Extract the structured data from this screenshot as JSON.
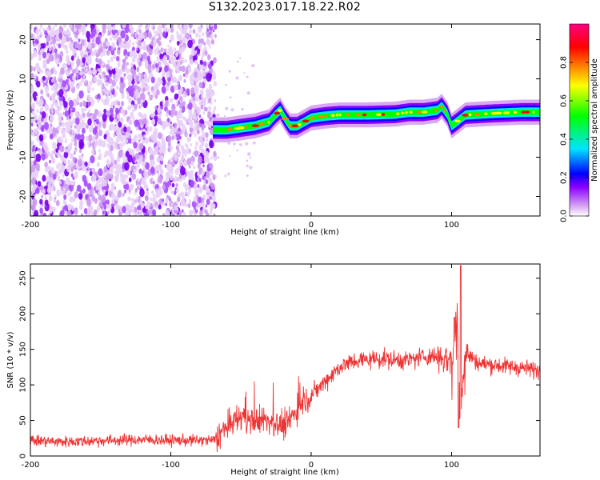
{
  "title": "S132.2023.017.18.22.R02",
  "chart_data": [
    {
      "type": "heatmap",
      "xlabel": "Height of straight line (km)",
      "ylabel": "Frequency (Hz)",
      "xlim": [
        -200,
        163
      ],
      "ylim": [
        -25,
        24
      ],
      "xticks": [
        -200,
        -100,
        0,
        100
      ],
      "yticks": [
        -20,
        -10,
        0,
        10,
        20
      ],
      "colorbar": {
        "label": "Normalized spectral amplitude",
        "range": [
          0,
          1
        ],
        "ticks": [
          0.0,
          0.2,
          0.4,
          0.6,
          0.8
        ],
        "tick_labels": [
          "0.0",
          "0.2",
          "0.4",
          "0.6",
          "0.8"
        ],
        "colors": [
          "#ffffff",
          "#d9a8f2",
          "#8b00ff",
          "#0000ff",
          "#00e5ff",
          "#00ff00",
          "#ffff00",
          "#ff8000",
          "#ff0000",
          "#ff007f"
        ]
      },
      "ridge": {
        "height_km": [
          -70,
          -60,
          -50,
          -40,
          -30,
          -25,
          -22,
          -18,
          -15,
          -10,
          -5,
          0,
          10,
          20,
          40,
          60,
          70,
          80,
          90,
          93,
          97,
          100,
          110,
          130,
          150,
          163
        ],
        "frequency_hz": [
          -3,
          -3,
          -2.5,
          -2,
          -1,
          1,
          2,
          -0.5,
          -2,
          -2,
          -1,
          0,
          0.5,
          0.8,
          0.8,
          1,
          1.5,
          1.5,
          2,
          3,
          1,
          -2,
          0.8,
          1.2,
          1.5,
          1.5
        ]
      },
      "noise_region_km": [
        -200,
        -68
      ]
    },
    {
      "type": "line",
      "xlabel": "Height of straight line (km)",
      "ylabel": "SNR (10 * v/v)",
      "xlim": [
        -200,
        163
      ],
      "ylim": [
        0,
        270
      ],
      "xticks": [
        -200,
        -100,
        0,
        100
      ],
      "yticks": [
        0,
        50,
        100,
        150,
        200,
        250
      ],
      "series": [
        {
          "color": "#ee3333",
          "x": [
            -200,
            -180,
            -160,
            -140,
            -120,
            -100,
            -80,
            -70,
            -60,
            -50,
            -40,
            -30,
            -20,
            -10,
            0,
            10,
            20,
            30,
            40,
            50,
            60,
            70,
            80,
            90,
            100,
            104,
            106,
            110,
            120,
            130,
            140,
            150,
            163
          ],
          "y": [
            22,
            20,
            21,
            22,
            23,
            22,
            22,
            22,
            40,
            55,
            50,
            50,
            40,
            65,
            85,
            105,
            125,
            133,
            136,
            137,
            135,
            135,
            140,
            140,
            135,
            200,
            60,
            145,
            130,
            128,
            126,
            124,
            120
          ]
        }
      ]
    }
  ]
}
